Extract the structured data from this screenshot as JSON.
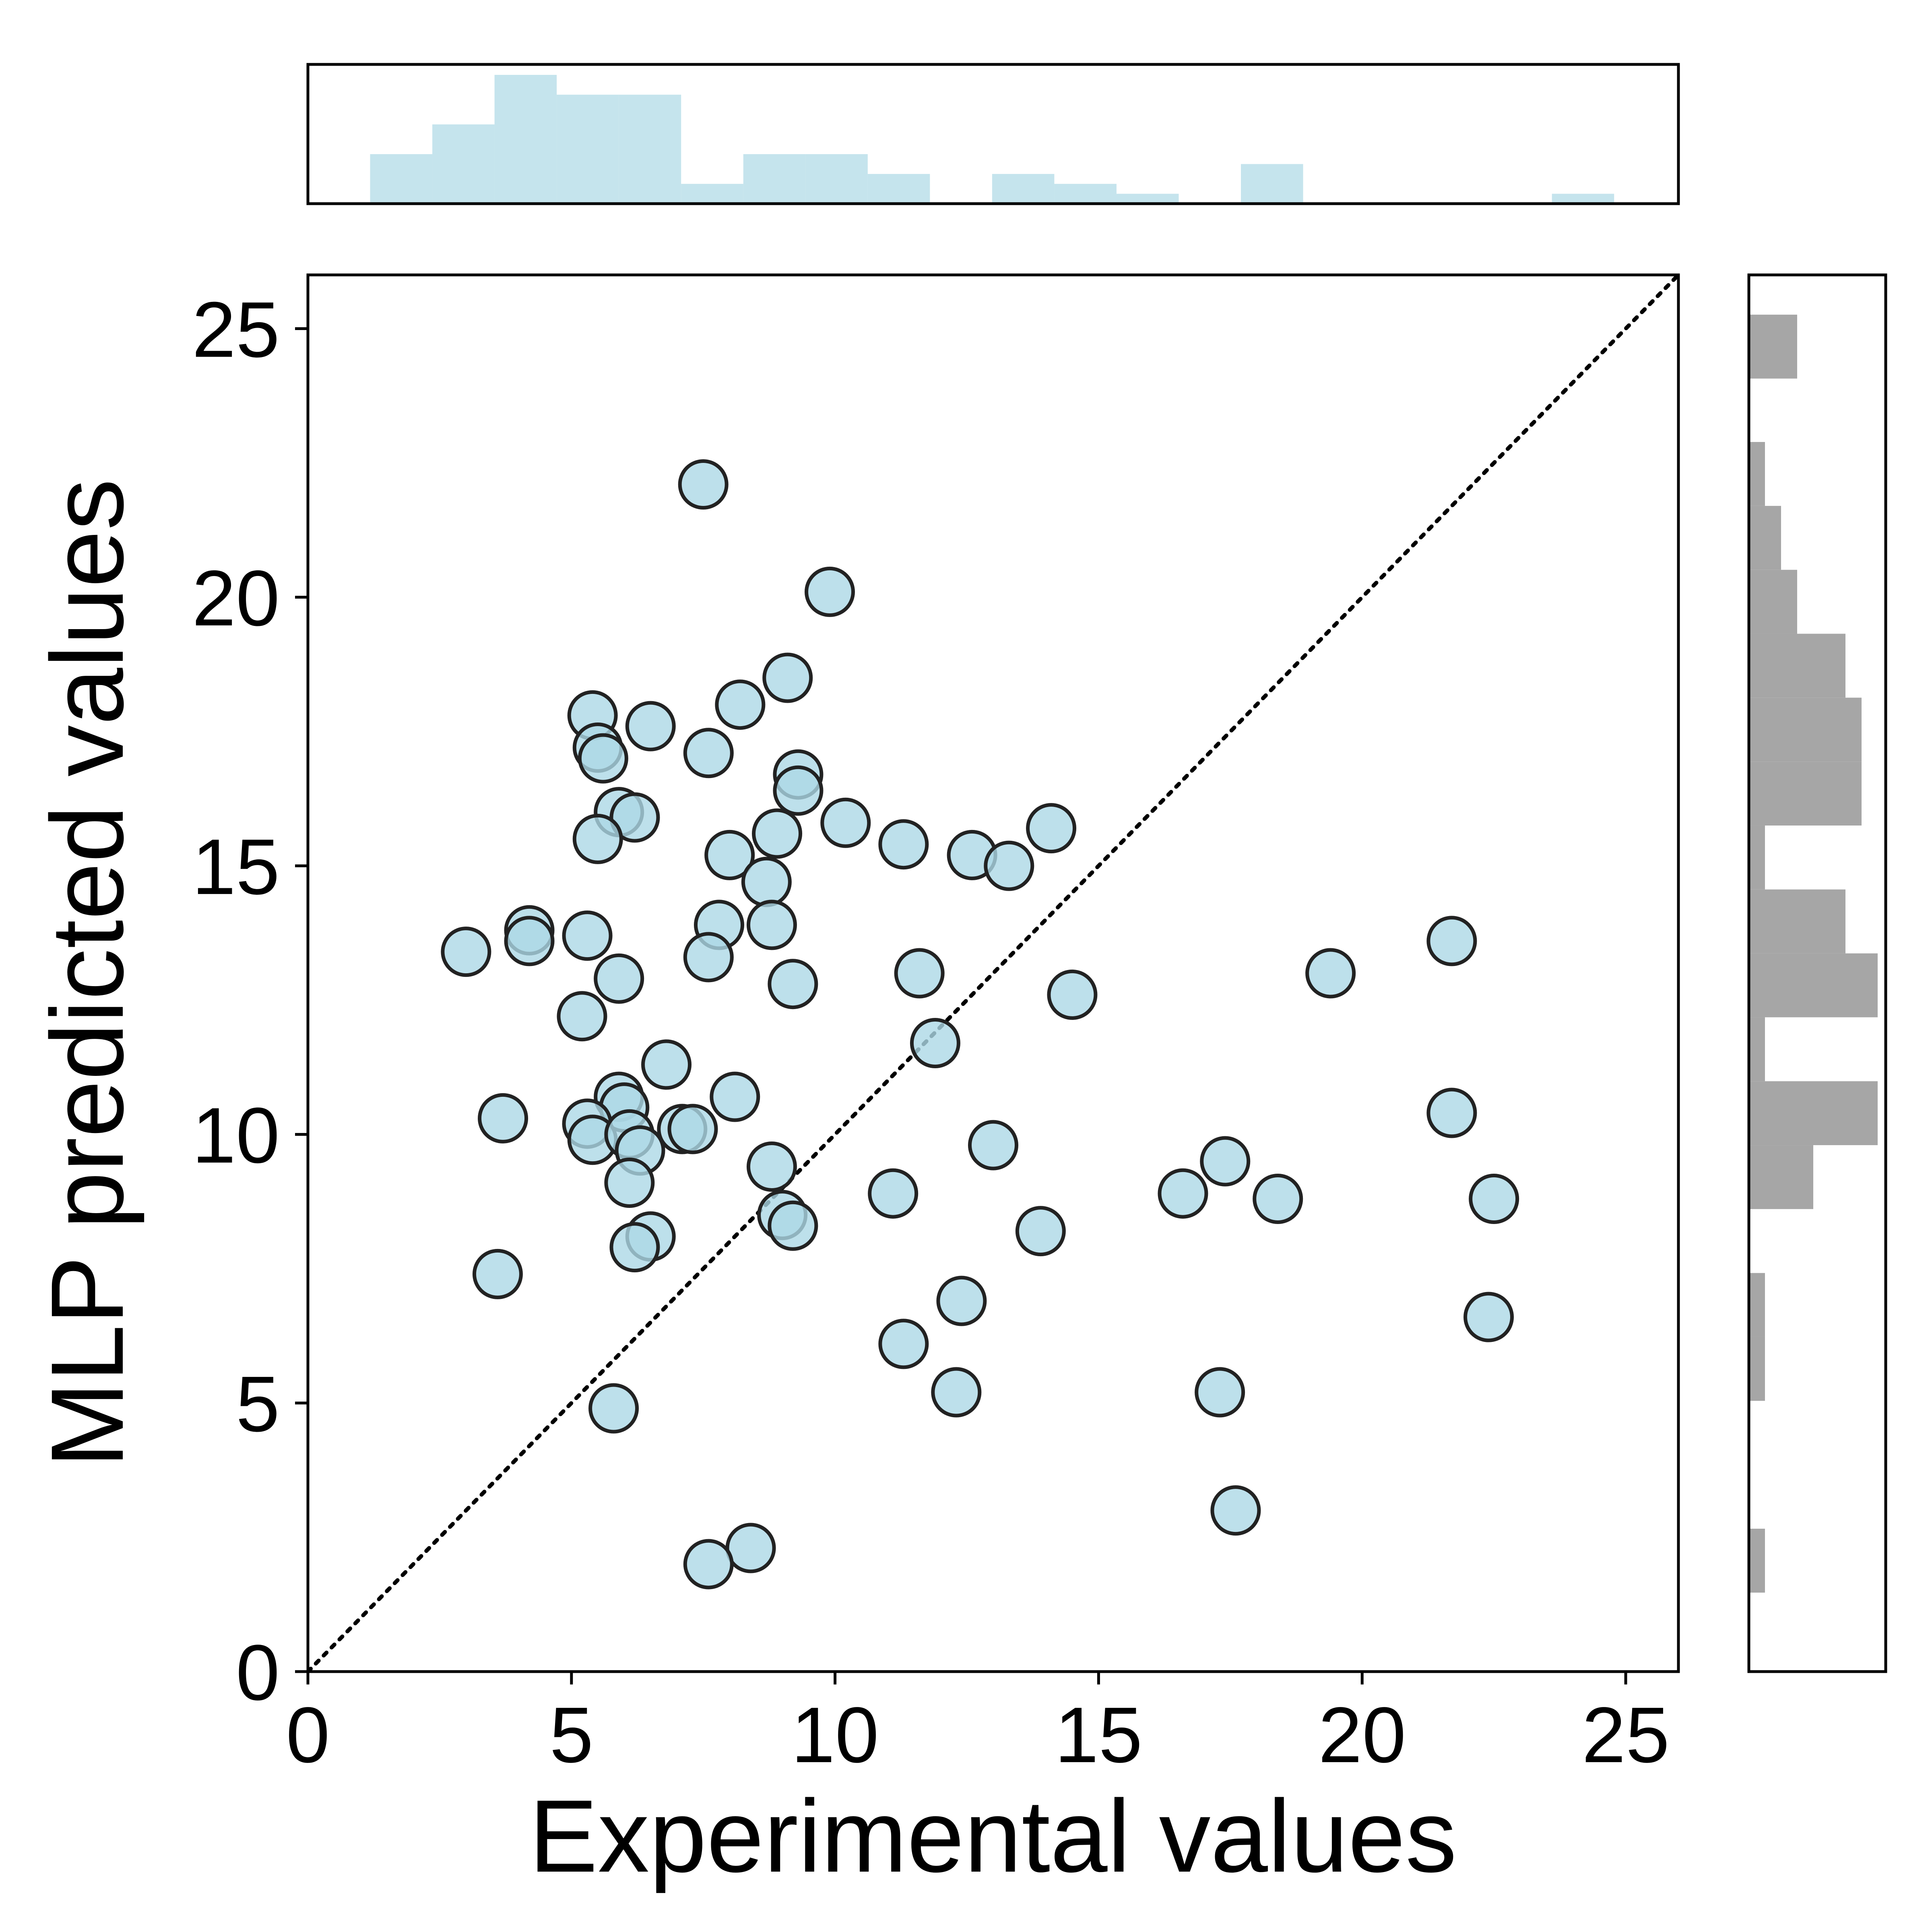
{
  "chart_data": {
    "type": "scatter",
    "xlabel": "Experimental values",
    "ylabel": "MLP predicted values",
    "xlim": [
      0,
      26
    ],
    "ylim": [
      0,
      26
    ],
    "x_ticks": [
      0,
      5,
      10,
      15,
      20,
      25
    ],
    "y_ticks": [
      0,
      5,
      10,
      15,
      20,
      25
    ],
    "reference_line": {
      "style": "dotted",
      "color": "#000000",
      "from": [
        0,
        0
      ],
      "to": [
        26,
        26
      ]
    },
    "marker": {
      "fill": "#add8e6",
      "edge": "#222222"
    },
    "series": [
      {
        "points": [
          [
            7.5,
            22.1
          ],
          [
            9.9,
            20.1
          ],
          [
            9.1,
            18.5
          ],
          [
            8.2,
            18.0
          ],
          [
            5.4,
            17.8
          ],
          [
            6.5,
            17.6
          ],
          [
            5.5,
            17.2
          ],
          [
            5.6,
            17.0
          ],
          [
            7.6,
            17.1
          ],
          [
            9.3,
            16.7
          ],
          [
            9.3,
            16.4
          ],
          [
            5.9,
            16.0
          ],
          [
            6.2,
            15.9
          ],
          [
            10.2,
            15.8
          ],
          [
            14.1,
            15.7
          ],
          [
            8.9,
            15.6
          ],
          [
            5.5,
            15.5
          ],
          [
            11.3,
            15.4
          ],
          [
            12.6,
            15.2
          ],
          [
            8.0,
            15.2
          ],
          [
            13.3,
            15.0
          ],
          [
            8.7,
            14.7
          ],
          [
            7.8,
            13.9
          ],
          [
            8.8,
            13.9
          ],
          [
            4.2,
            13.8
          ],
          [
            4.2,
            13.6
          ],
          [
            5.3,
            13.7
          ],
          [
            21.7,
            13.6
          ],
          [
            3.0,
            13.4
          ],
          [
            7.6,
            13.3
          ],
          [
            11.6,
            13.0
          ],
          [
            19.4,
            13.0
          ],
          [
            5.9,
            12.9
          ],
          [
            9.2,
            12.8
          ],
          [
            14.5,
            12.6
          ],
          [
            5.2,
            12.2
          ],
          [
            11.9,
            11.7
          ],
          [
            6.8,
            11.3
          ],
          [
            8.1,
            10.7
          ],
          [
            5.9,
            10.7
          ],
          [
            6.0,
            10.5
          ],
          [
            3.7,
            10.3
          ],
          [
            21.7,
            10.4
          ],
          [
            5.3,
            10.2
          ],
          [
            7.1,
            10.1
          ],
          [
            7.3,
            10.1
          ],
          [
            5.4,
            9.9
          ],
          [
            6.1,
            10.0
          ],
          [
            6.3,
            9.7
          ],
          [
            13.0,
            9.8
          ],
          [
            8.8,
            9.4
          ],
          [
            17.4,
            9.5
          ],
          [
            6.1,
            9.1
          ],
          [
            11.1,
            8.9
          ],
          [
            16.6,
            8.9
          ],
          [
            18.4,
            8.8
          ],
          [
            22.5,
            8.8
          ],
          [
            9.0,
            8.5
          ],
          [
            9.2,
            8.3
          ],
          [
            13.9,
            8.2
          ],
          [
            6.5,
            8.1
          ],
          [
            6.2,
            7.9
          ],
          [
            3.6,
            7.4
          ],
          [
            12.4,
            6.9
          ],
          [
            22.4,
            6.6
          ],
          [
            11.3,
            6.1
          ],
          [
            12.3,
            5.2
          ],
          [
            17.3,
            5.2
          ],
          [
            5.8,
            4.9
          ],
          [
            17.6,
            3.0
          ],
          [
            8.4,
            2.3
          ],
          [
            7.6,
            2.0
          ]
        ]
      }
    ],
    "top_histogram": {
      "color": "#add8e6",
      "bin_edges": [
        1.18,
        2.36,
        3.54,
        4.72,
        5.9,
        7.08,
        8.26,
        9.44,
        10.62,
        11.8,
        12.98,
        14.16,
        15.34,
        16.52,
        17.7,
        18.88,
        20.06,
        21.24,
        22.42,
        23.6,
        24.78
      ],
      "counts": [
        5,
        8,
        13,
        11,
        11,
        2,
        5,
        5,
        3,
        0,
        3,
        2,
        1,
        0,
        4,
        0,
        0,
        0,
        0,
        1
      ]
    },
    "right_histogram": {
      "color": "#a6a6a6",
      "bin_edges": [
        1.47,
        2.66,
        3.85,
        5.04,
        6.23,
        7.42,
        8.61,
        9.8,
        10.99,
        12.18,
        13.37,
        14.56,
        15.75,
        16.94,
        18.13,
        19.32,
        20.51,
        21.7,
        22.89,
        24.07,
        25.26
      ],
      "counts": [
        1,
        0,
        0,
        1,
        1,
        0,
        4,
        8,
        1,
        8,
        6,
        1,
        7,
        7,
        6,
        3,
        2,
        1,
        0,
        3
      ]
    }
  }
}
